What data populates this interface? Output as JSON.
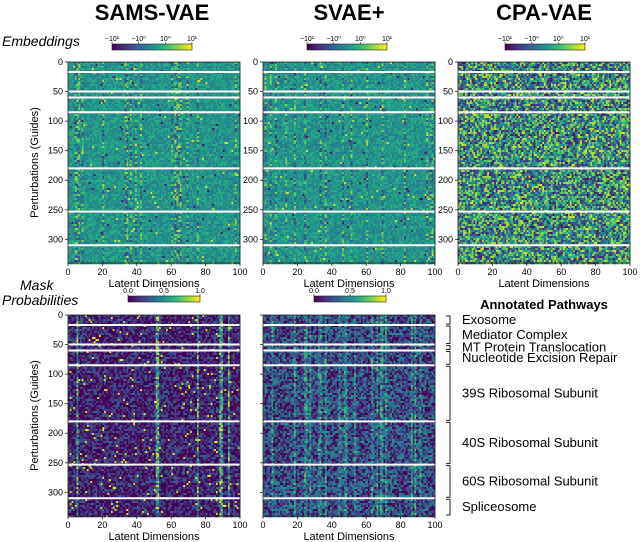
{
  "chart_data": {
    "type": "heatmap",
    "models": [
      "SAMS-VAE",
      "SVAE+",
      "CPA-VAE"
    ],
    "rows": {
      "embeddings": {
        "label": "Embeddings",
        "colorbar_ticks": [
          "−10¹",
          "−10⁰",
          "10⁰",
          "10¹"
        ]
      },
      "mask": {
        "label_line1": "Mask",
        "label_line2": "Probabilities",
        "colorbar_ticks": [
          "0.0",
          "0.5",
          "1.0"
        ]
      }
    },
    "xlabel": "Latent Dimensions",
    "ylabel": "Perturbations (Guides)",
    "xlim": [
      0,
      100
    ],
    "ylim": [
      0,
      340
    ],
    "x_ticks": [
      "0",
      "20",
      "40",
      "60",
      "80",
      "100"
    ],
    "y_ticks": [
      "0",
      "50",
      "100",
      "150",
      "200",
      "250",
      "300"
    ],
    "group_boundaries": [
      17,
      50,
      60,
      85,
      180,
      253,
      310,
      340
    ],
    "pathways_title": "Annotated Pathways",
    "pathways": [
      {
        "name": "Exosome",
        "start": 0,
        "end": 17
      },
      {
        "name": "Mediator Complex",
        "start": 17,
        "end": 50
      },
      {
        "name": "MT Protein Translocation",
        "start": 50,
        "end": 60
      },
      {
        "name": "Nucleotide Excision Repair",
        "start": 60,
        "end": 85
      },
      {
        "name": "39S Ribosomal Subunit",
        "start": 85,
        "end": 180
      },
      {
        "name": "40S Ribosomal Subunit",
        "start": 180,
        "end": 253
      },
      {
        "name": "60S Ribosomal Subunit",
        "start": 253,
        "end": 310
      },
      {
        "name": "Spliceosome",
        "start": 310,
        "end": 340
      }
    ]
  }
}
